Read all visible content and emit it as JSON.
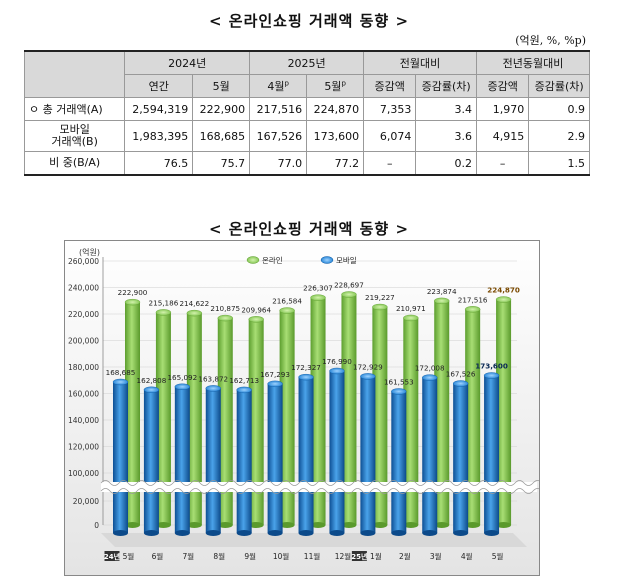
{
  "title": "< 온라인쇼핑 거래액 동향 >",
  "units": "(억원, %, %p)",
  "table": {
    "header1": [
      "2024년",
      "2025년",
      "전월대비",
      "전년동월대비"
    ],
    "header2": [
      "연간",
      "5월",
      "4월",
      "p",
      "5월",
      "p",
      "증감액",
      "증감률(차)",
      "증감액",
      "증감률(차)"
    ],
    "rows": [
      {
        "label": "ㅇ 총 거래액(A)",
        "values": [
          "2,594,319",
          "222,900",
          "217,516",
          "224,870",
          "7,353",
          "3.4",
          "1,970",
          "0.9"
        ]
      },
      {
        "label1": "모바일",
        "label2": "거래액(B)",
        "values": [
          "1,983,395",
          "168,685",
          "167,526",
          "173,600",
          "6,074",
          "3.6",
          "4,915",
          "2.9"
        ]
      },
      {
        "label": "비 중(B/A)",
        "values": [
          "76.5",
          "75.7",
          "77.0",
          "77.2",
          "–",
          "0.2",
          "–",
          "1.5"
        ]
      }
    ]
  },
  "chart_title": "< 온라인쇼핑 거래액 동향 >",
  "chart_data": {
    "type": "bar",
    "ylabel": "(억원)",
    "yticks": [
      "260,000",
      "240,000",
      "220,000",
      "200,000",
      "180,000",
      "160,000",
      "140,000",
      "120,000",
      "100,000",
      "20,000",
      "0"
    ],
    "year_labels": [
      "24년",
      "25년"
    ],
    "categories": [
      "5월",
      "6월",
      "7월",
      "8월",
      "9월",
      "10월",
      "11월",
      "12월",
      "1월",
      "2월",
      "3월",
      "4월",
      "5월"
    ],
    "series": [
      {
        "name": "온라인",
        "color": "#7fc34a",
        "values": [
          222900,
          215186,
          214622,
          210875,
          209964,
          216584,
          226307,
          228697,
          219227,
          210971,
          223874,
          217516,
          224870
        ],
        "labels": [
          "222,900",
          "215,186",
          "214,622",
          "210,875",
          "209,964",
          "216,584",
          "226,307",
          "228,697",
          "219,227",
          "210,971",
          "223,874",
          "217,516",
          "224,870"
        ]
      },
      {
        "name": "모바일",
        "color": "#1f7ac4",
        "values": [
          168685,
          162808,
          165092,
          163872,
          162713,
          167293,
          172327,
          176990,
          172929,
          161553,
          172008,
          167526,
          173600
        ],
        "labels": [
          "168,685",
          "162,808",
          "165,092",
          "163,872",
          "162,713",
          "167,293",
          "172,327",
          "176,990",
          "172,929",
          "161,553",
          "172,008",
          "167,526",
          "173,600"
        ]
      }
    ],
    "axis_break": [
      20000,
      100000
    ]
  }
}
